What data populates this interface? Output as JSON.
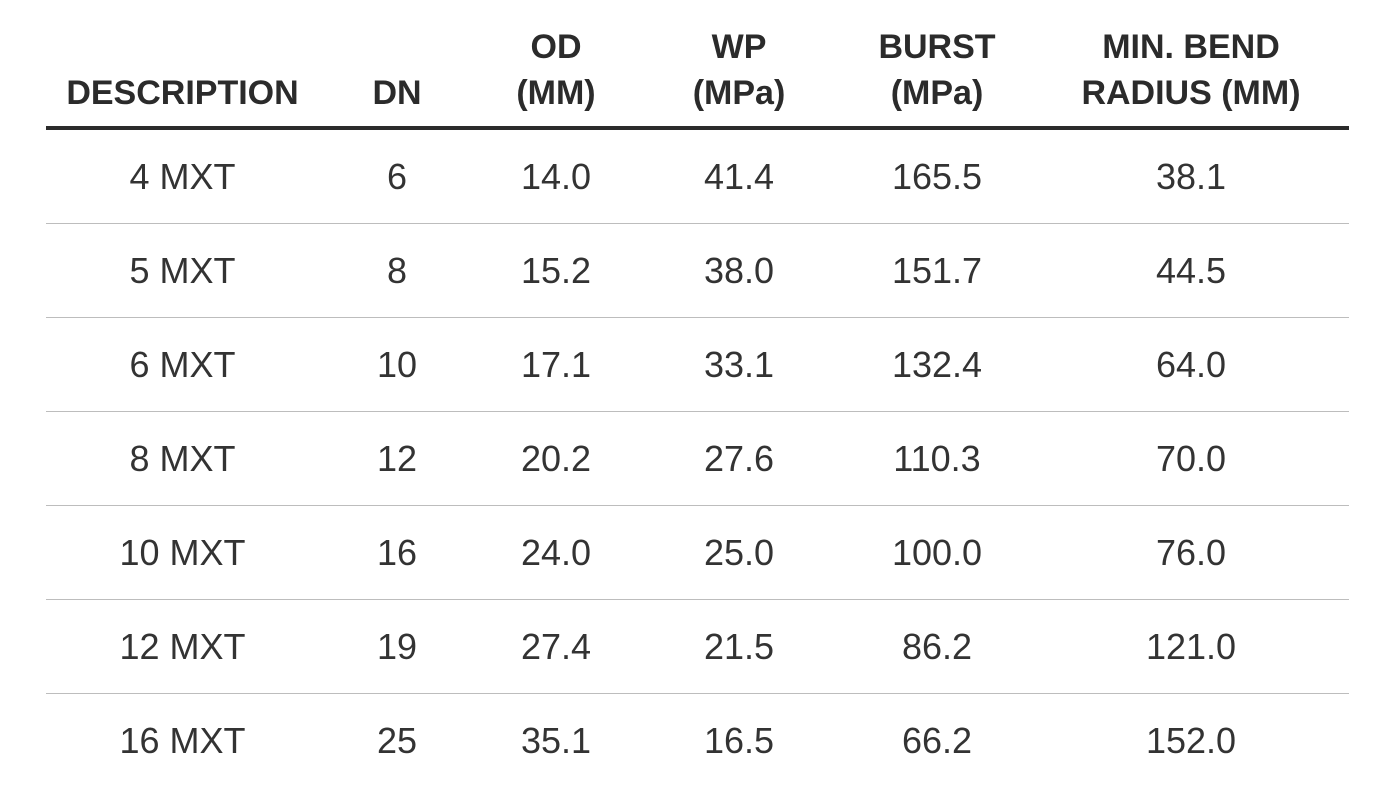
{
  "table": {
    "headers": [
      {
        "lines": [
          "DESCRIPTION"
        ]
      },
      {
        "lines": [
          "DN"
        ]
      },
      {
        "lines": [
          "OD",
          "(MM)"
        ]
      },
      {
        "lines": [
          "WP",
          "(MPa)"
        ]
      },
      {
        "lines": [
          "BURST",
          "(MPa)"
        ]
      },
      {
        "lines": [
          "MIN. BEND",
          "RADIUS (MM)"
        ]
      }
    ],
    "rows": [
      [
        "4 MXT",
        "6",
        "14.0",
        "41.4",
        "165.5",
        "38.1"
      ],
      [
        "5 MXT",
        "8",
        "15.2",
        "38.0",
        "151.7",
        "44.5"
      ],
      [
        "6 MXT",
        "10",
        "17.1",
        "33.1",
        "132.4",
        "64.0"
      ],
      [
        "8 MXT",
        "12",
        "20.2",
        "27.6",
        "110.3",
        "70.0"
      ],
      [
        "10 MXT",
        "16",
        "24.0",
        "25.0",
        "100.0",
        "76.0"
      ],
      [
        "12 MXT",
        "19",
        "27.4",
        "21.5",
        "86.2",
        "121.0"
      ],
      [
        "16 MXT",
        "25",
        "35.1",
        "16.5",
        "66.2",
        "152.0"
      ]
    ]
  }
}
